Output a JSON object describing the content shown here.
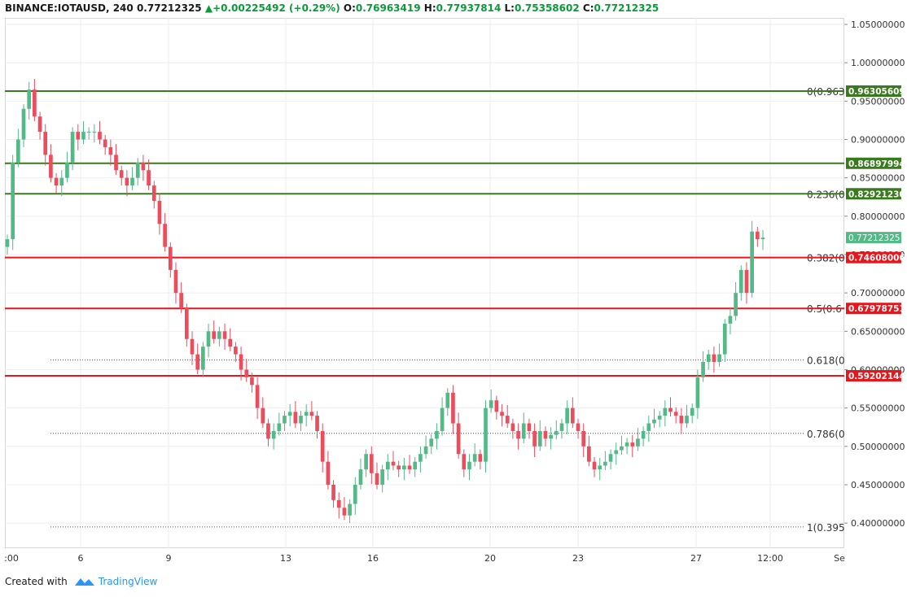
{
  "header": {
    "symbol": "BINANCE:IOTAUSD, 240",
    "last": "0.77212325",
    "change": "+0.00225492 (+0.29%)",
    "o_label": "O:",
    "o": "0.76963419",
    "h_label": "H:",
    "h": "0.77937814",
    "l_label": "L:",
    "l": "0.75358602",
    "c_label": "C:",
    "c": "0.77212325"
  },
  "footer": {
    "created_with": "Created with",
    "brand": "TradingView"
  },
  "colors": {
    "up": "#53b987",
    "down": "#eb4d5c",
    "hline_green": "#3a7a1e",
    "hline_red": "#e8151b",
    "grid": "#eeeeee",
    "fib": "#555555"
  },
  "chart_data": {
    "type": "candlestick",
    "ylim": [
      0.38,
      1.05
    ],
    "yticks": [
      "1.05000000",
      "1.00000000",
      "0.95000000",
      "0.90000000",
      "0.85000000",
      "0.80000000",
      "0.75000000",
      "0.70000000",
      "0.65000000",
      "0.60000000",
      "0.55000000",
      "0.50000000",
      "0.45000000",
      "0.40000000"
    ],
    "xticks": [
      ":00",
      "6",
      "9",
      "13",
      "16",
      "20",
      "23",
      "27",
      "12:00",
      "Se"
    ],
    "hlines": [
      {
        "value": 0.96305609,
        "label": "0.96305609",
        "color": "#3a7a1e"
      },
      {
        "value": 0.86897994,
        "label": "0.86897994",
        "color": "#3a7a1e"
      },
      {
        "value": 0.8292123,
        "label": "0.82921230",
        "color": "#3a7a1e"
      },
      {
        "value": 0.74608006,
        "label": "0.74608006",
        "color": "#e8151b"
      },
      {
        "value": 0.67978751,
        "label": "0.67978751",
        "color": "#e8151b"
      },
      {
        "value": 0.59202144,
        "label": "0.59202144",
        "color": "#e8151b"
      }
    ],
    "price_tag": {
      "value": 0.77212325,
      "label": "0.77212325",
      "color": "#53b987"
    },
    "fib_levels": [
      {
        "value": 0.96305609,
        "label": "0(0.963"
      },
      {
        "value": 0.8292123,
        "label": "0.236(0"
      },
      {
        "value": 0.74608006,
        "label": "0.382(0"
      },
      {
        "value": 0.67978751,
        "label": "0.5(0.6"
      },
      {
        "value": 0.612582,
        "label": "0.618(0"
      },
      {
        "value": 0.517,
        "label": "0.786(0"
      },
      {
        "value": 0.395,
        "label": "1(0.395"
      }
    ],
    "closes": [
      0.77,
      0.87,
      0.9,
      0.94,
      0.965,
      0.93,
      0.91,
      0.88,
      0.85,
      0.84,
      0.85,
      0.87,
      0.91,
      0.9,
      0.91,
      0.91,
      0.91,
      0.9,
      0.89,
      0.88,
      0.86,
      0.85,
      0.84,
      0.85,
      0.87,
      0.86,
      0.84,
      0.82,
      0.79,
      0.76,
      0.73,
      0.7,
      0.68,
      0.64,
      0.62,
      0.6,
      0.63,
      0.65,
      0.64,
      0.65,
      0.64,
      0.63,
      0.62,
      0.6,
      0.59,
      0.58,
      0.55,
      0.53,
      0.51,
      0.52,
      0.53,
      0.54,
      0.545,
      0.53,
      0.54,
      0.545,
      0.54,
      0.52,
      0.48,
      0.45,
      0.43,
      0.42,
      0.41,
      0.425,
      0.45,
      0.47,
      0.49,
      0.465,
      0.45,
      0.47,
      0.48,
      0.475,
      0.47,
      0.475,
      0.47,
      0.48,
      0.49,
      0.5,
      0.51,
      0.52,
      0.55,
      0.57,
      0.53,
      0.49,
      0.47,
      0.48,
      0.49,
      0.48,
      0.55,
      0.56,
      0.545,
      0.54,
      0.53,
      0.52,
      0.51,
      0.53,
      0.52,
      0.5,
      0.52,
      0.51,
      0.515,
      0.52,
      0.53,
      0.55,
      0.53,
      0.52,
      0.5,
      0.48,
      0.47,
      0.475,
      0.48,
      0.49,
      0.495,
      0.5,
      0.505,
      0.5,
      0.51,
      0.52,
      0.53,
      0.535,
      0.54,
      0.55,
      0.545,
      0.54,
      0.53,
      0.54,
      0.55,
      0.59,
      0.61,
      0.62,
      0.61,
      0.62,
      0.66,
      0.67,
      0.7,
      0.73,
      0.7,
      0.78,
      0.77,
      0.772
    ]
  }
}
